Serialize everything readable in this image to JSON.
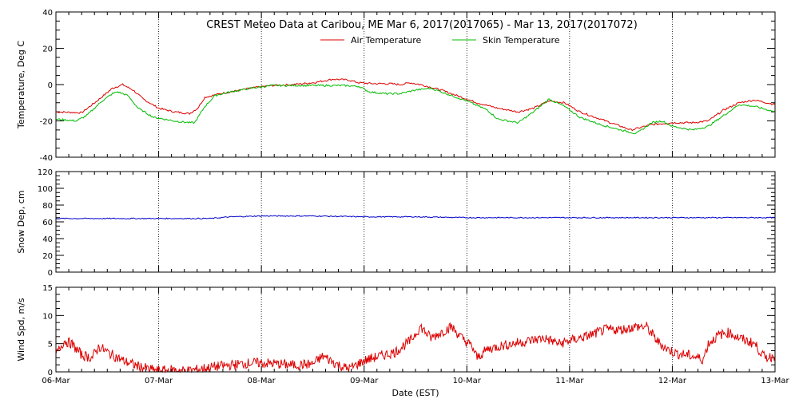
{
  "chart_data": {
    "type": "line",
    "title": "CREST Meteo Data at Caribou, ME   Mar  6, 2017(2017065) - Mar 13, 2017(2017072)",
    "xlabel": "Date (EST)",
    "x_range": [
      0,
      7
    ],
    "x_ticks": [
      {
        "x": 0,
        "label": "06-Mar"
      },
      {
        "x": 1,
        "label": "07-Mar"
      },
      {
        "x": 2,
        "label": "08-Mar"
      },
      {
        "x": 3,
        "label": "09-Mar"
      },
      {
        "x": 4,
        "label": "10-Mar"
      },
      {
        "x": 5,
        "label": "11-Mar"
      },
      {
        "x": 6,
        "label": "12-Mar"
      },
      {
        "x": 7,
        "label": "13-Mar"
      }
    ],
    "grid": true,
    "panels": [
      {
        "id": "temperature",
        "ylabel": "Temperature, Deg C",
        "ylim": [
          -40,
          40
        ],
        "yticks": [
          -40,
          -20,
          0,
          20,
          40
        ],
        "legend": "top-center",
        "series": [
          {
            "name": "Air Temperature",
            "color": "#dd0000",
            "points": [
              [
                0,
                -15
              ],
              [
                0.25,
                -15.5
              ],
              [
                0.4,
                -9
              ],
              [
                0.55,
                -2
              ],
              [
                0.65,
                0
              ],
              [
                0.75,
                -3
              ],
              [
                0.85,
                -8
              ],
              [
                1.0,
                -13
              ],
              [
                1.15,
                -15
              ],
              [
                1.3,
                -16
              ],
              [
                1.38,
                -13
              ],
              [
                1.45,
                -7
              ],
              [
                1.6,
                -5
              ],
              [
                1.8,
                -3
              ],
              [
                1.95,
                -1.5
              ],
              [
                2.1,
                -0.5
              ],
              [
                2.3,
                0
              ],
              [
                2.5,
                1
              ],
              [
                2.7,
                3
              ],
              [
                2.85,
                2.5
              ],
              [
                2.95,
                1
              ],
              [
                3.1,
                0.5
              ],
              [
                3.25,
                0.5
              ],
              [
                3.35,
                0
              ],
              [
                3.45,
                1
              ],
              [
                3.55,
                0
              ],
              [
                3.75,
                -3
              ],
              [
                3.9,
                -6
              ],
              [
                4.1,
                -10
              ],
              [
                4.3,
                -13
              ],
              [
                4.5,
                -15
              ],
              [
                4.65,
                -13
              ],
              [
                4.8,
                -9
              ],
              [
                4.95,
                -10
              ],
              [
                5.1,
                -15
              ],
              [
                5.3,
                -19
              ],
              [
                5.5,
                -23
              ],
              [
                5.6,
                -25
              ],
              [
                5.8,
                -22
              ],
              [
                6.0,
                -21
              ],
              [
                6.2,
                -21
              ],
              [
                6.35,
                -20
              ],
              [
                6.5,
                -14
              ],
              [
                6.65,
                -10
              ],
              [
                6.8,
                -8.5
              ],
              [
                7.0,
                -11
              ]
            ]
          },
          {
            "name": "Skin Temperature",
            "color": "#00bb00",
            "points": [
              [
                0,
                -19
              ],
              [
                0.2,
                -20
              ],
              [
                0.3,
                -17
              ],
              [
                0.45,
                -9
              ],
              [
                0.55,
                -5
              ],
              [
                0.6,
                -4
              ],
              [
                0.7,
                -6
              ],
              [
                0.8,
                -13
              ],
              [
                0.95,
                -18
              ],
              [
                1.15,
                -20
              ],
              [
                1.3,
                -21
              ],
              [
                1.35,
                -21
              ],
              [
                1.45,
                -12
              ],
              [
                1.55,
                -6
              ],
              [
                1.7,
                -4
              ],
              [
                1.9,
                -2
              ],
              [
                2.1,
                -0.5
              ],
              [
                2.3,
                -0.5
              ],
              [
                2.5,
                -0.5
              ],
              [
                2.8,
                -0.5
              ],
              [
                2.95,
                -1
              ],
              [
                3.05,
                -4
              ],
              [
                3.2,
                -5
              ],
              [
                3.35,
                -5
              ],
              [
                3.5,
                -3
              ],
              [
                3.65,
                -2
              ],
              [
                3.8,
                -5
              ],
              [
                4.0,
                -9
              ],
              [
                4.2,
                -14
              ],
              [
                4.3,
                -19
              ],
              [
                4.5,
                -21
              ],
              [
                4.65,
                -15
              ],
              [
                4.8,
                -8
              ],
              [
                4.95,
                -12
              ],
              [
                5.1,
                -18
              ],
              [
                5.3,
                -22
              ],
              [
                5.5,
                -25
              ],
              [
                5.65,
                -27
              ],
              [
                5.8,
                -21
              ],
              [
                5.9,
                -20
              ],
              [
                6.0,
                -23
              ],
              [
                6.2,
                -25
              ],
              [
                6.35,
                -23
              ],
              [
                6.5,
                -17
              ],
              [
                6.65,
                -11
              ],
              [
                6.8,
                -12
              ],
              [
                7.0,
                -15
              ]
            ]
          }
        ]
      },
      {
        "id": "snow",
        "ylabel": "Snow Dep, cm",
        "ylim": [
          0,
          120
        ],
        "yticks": [
          0,
          20,
          40,
          60,
          80,
          100,
          120
        ],
        "series": [
          {
            "color": "#0000cc",
            "points": [
              [
                0,
                64
              ],
              [
                0.5,
                64
              ],
              [
                1.0,
                64
              ],
              [
                1.5,
                64
              ],
              [
                1.7,
                66
              ],
              [
                2.0,
                67
              ],
              [
                2.5,
                67
              ],
              [
                3.0,
                66
              ],
              [
                3.5,
                66
              ],
              [
                4.0,
                65
              ],
              [
                4.5,
                65
              ],
              [
                5.0,
                65
              ],
              [
                5.5,
                65
              ],
              [
                6.0,
                65
              ],
              [
                6.5,
                65
              ],
              [
                7.0,
                65
              ]
            ]
          }
        ]
      },
      {
        "id": "wind",
        "ylabel": "Wind Spd, m/s",
        "ylim": [
          0,
          15
        ],
        "yticks": [
          0,
          5,
          10,
          15
        ],
        "series": [
          {
            "color": "#dd0000",
            "points": [
              [
                0,
                3
              ],
              [
                0.08,
                5.5
              ],
              [
                0.15,
                5
              ],
              [
                0.25,
                3
              ],
              [
                0.35,
                2.5
              ],
              [
                0.42,
                4.5
              ],
              [
                0.5,
                3.5
              ],
              [
                0.65,
                2
              ],
              [
                0.8,
                1
              ],
              [
                0.9,
                0.5
              ],
              [
                1.0,
                0.2
              ],
              [
                1.15,
                0.3
              ],
              [
                1.3,
                0.2
              ],
              [
                1.5,
                0.8
              ],
              [
                1.7,
                1.2
              ],
              [
                1.9,
                1.6
              ],
              [
                2.1,
                1.5
              ],
              [
                2.3,
                1.2
              ],
              [
                2.5,
                1.4
              ],
              [
                2.6,
                2.8
              ],
              [
                2.75,
                1.2
              ],
              [
                2.85,
                0.5
              ],
              [
                3.0,
                2.0
              ],
              [
                3.15,
                2.8
              ],
              [
                3.3,
                3.5
              ],
              [
                3.45,
                5.5
              ],
              [
                3.55,
                8
              ],
              [
                3.65,
                6
              ],
              [
                3.75,
                7
              ],
              [
                3.85,
                8
              ],
              [
                3.95,
                6
              ],
              [
                4.05,
                4.5
              ],
              [
                4.1,
                2.5
              ],
              [
                4.2,
                4
              ],
              [
                4.3,
                4.5
              ],
              [
                4.45,
                5
              ],
              [
                4.6,
                5.5
              ],
              [
                4.75,
                6
              ],
              [
                4.9,
                5
              ],
              [
                5.0,
                5.5
              ],
              [
                5.2,
                6.5
              ],
              [
                5.35,
                7.5
              ],
              [
                5.5,
                7.5
              ],
              [
                5.65,
                8
              ],
              [
                5.75,
                8
              ],
              [
                5.85,
                5.5
              ],
              [
                5.95,
                4
              ],
              [
                6.05,
                3.2
              ],
              [
                6.15,
                3
              ],
              [
                6.25,
                2.5
              ],
              [
                6.3,
                2.2
              ],
              [
                6.35,
                5
              ],
              [
                6.45,
                6.5
              ],
              [
                6.55,
                7
              ],
              [
                6.65,
                6
              ],
              [
                6.8,
                5
              ],
              [
                6.9,
                2.5
              ],
              [
                7.0,
                2.8
              ]
            ]
          }
        ]
      }
    ]
  }
}
